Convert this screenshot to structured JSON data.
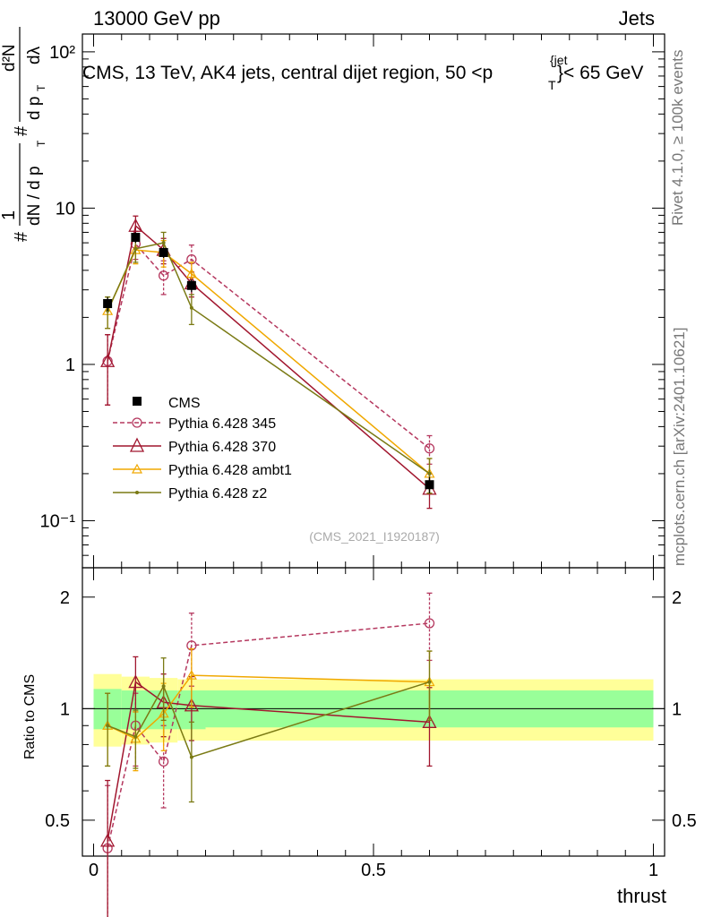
{
  "header": {
    "energy": "13000 GeV pp",
    "category": "Jets",
    "title_main": "CMS, 13 TeV, AK4 jets, central dijet region, 50 <",
    "title_p": "p",
    "title_sup": "{jet",
    "title_sub": "T",
    "title_end": "}< 65 GeV",
    "rivet": "Rivet 4.1.0, ≥ 100k events",
    "mcplots": "mcplots.cern.ch [arXiv:2401.10621]",
    "analysis": "(CMS_2021_I1920187)"
  },
  "ylabel_parts": [
    "#",
    "1",
    "dN / d p",
    "T",
    "#",
    "d p",
    "T",
    "d²N",
    "dλ"
  ],
  "colors": {
    "data": "#000000",
    "p345": "#b5385f",
    "p370": "#a1162e",
    "ambt1": "#f0a800",
    "z2": "#7a7a14",
    "band_inner": "#99ff99",
    "band_outer": "#ffff99"
  },
  "chart_data": [
    {
      "type": "line",
      "yscale": "log",
      "xlim": [
        -0.02,
        1.02
      ],
      "ylim": [
        0.05,
        130
      ],
      "ytick_labels": [
        "10⁻¹",
        "1",
        "10",
        "10²"
      ],
      "xlabel": "thrust",
      "bins": [
        [
          0.0,
          0.05
        ],
        [
          0.05,
          0.1
        ],
        [
          0.1,
          0.15
        ],
        [
          0.15,
          0.2
        ],
        [
          0.2,
          1.0
        ]
      ],
      "series": [
        {
          "name": "CMS",
          "x": [
            0.025,
            0.075,
            0.125,
            0.175,
            0.6
          ],
          "y": [
            2.45,
            6.5,
            5.2,
            3.2,
            0.17
          ],
          "err": [
            0.25,
            0.5,
            0.4,
            0.3,
            0.02
          ],
          "style": "data"
        },
        {
          "name": "Pythia 6.428 345",
          "x": [
            0.025,
            0.075,
            0.125,
            0.175,
            0.6
          ],
          "y": [
            1.05,
            5.9,
            3.7,
            4.7,
            0.29
          ],
          "err": [
            0.5,
            1.2,
            0.9,
            1.1,
            0.06
          ],
          "style": "p345"
        },
        {
          "name": "Pythia 6.428 370",
          "x": [
            0.025,
            0.075,
            0.125,
            0.175,
            0.6
          ],
          "y": [
            1.05,
            7.7,
            5.4,
            3.3,
            0.16
          ],
          "err": [
            0.5,
            1.2,
            1.0,
            0.6,
            0.04
          ],
          "style": "p370"
        },
        {
          "name": "Pythia 6.428 ambt1",
          "x": [
            0.025,
            0.075,
            0.125,
            0.175,
            0.6
          ],
          "y": [
            2.2,
            5.4,
            5.2,
            3.8,
            0.2
          ],
          "err": [
            0.5,
            1.0,
            1.0,
            0.7,
            0.05
          ],
          "style": "ambt1"
        },
        {
          "name": "Pythia 6.428 z2",
          "x": [
            0.025,
            0.075,
            0.125,
            0.175,
            0.6
          ],
          "y": [
            2.2,
            5.5,
            6.0,
            2.3,
            0.2
          ],
          "err": [
            0.5,
            1.0,
            1.0,
            0.5,
            0.05
          ],
          "style": "z2"
        }
      ]
    },
    {
      "type": "line",
      "yscale": "log",
      "xlim": [
        -0.02,
        1.02
      ],
      "ylim": [
        0.4,
        2.4
      ],
      "ylabel": "Ratio to CMS",
      "xlabel": "thrust",
      "xticks": [
        0,
        0.5,
        1
      ],
      "xtick_labels": [
        "0",
        "0.5",
        "1"
      ],
      "yticks": [
        0.5,
        1,
        2
      ],
      "ytick_labels": [
        "0.5",
        "1",
        "2"
      ],
      "band_bins": [
        [
          0.0,
          0.05
        ],
        [
          0.05,
          0.1
        ],
        [
          0.1,
          0.15
        ],
        [
          0.15,
          0.2
        ],
        [
          0.2,
          1.0
        ]
      ],
      "band_inner": [
        [
          0.88,
          1.13
        ],
        [
          0.88,
          1.12
        ],
        [
          0.88,
          1.12
        ],
        [
          0.88,
          1.12
        ],
        [
          0.89,
          1.12
        ]
      ],
      "band_outer": [
        [
          0.79,
          1.24
        ],
        [
          0.8,
          1.22
        ],
        [
          0.81,
          1.21
        ],
        [
          0.82,
          1.2
        ],
        [
          0.82,
          1.2
        ]
      ],
      "series": [
        {
          "name": "Pythia 6.428 345",
          "x": [
            0.025,
            0.075,
            0.125,
            0.175,
            0.6
          ],
          "y": [
            0.42,
            0.9,
            0.72,
            1.48,
            1.7
          ],
          "err": [
            0.2,
            0.2,
            0.18,
            0.33,
            0.35
          ],
          "style": "p345"
        },
        {
          "name": "Pythia 6.428 370",
          "x": [
            0.025,
            0.075,
            0.125,
            0.175,
            0.6
          ],
          "y": [
            0.44,
            1.18,
            1.04,
            1.02,
            0.92
          ],
          "err": [
            0.2,
            0.2,
            0.2,
            0.2,
            0.22
          ],
          "style": "p370"
        },
        {
          "name": "Pythia 6.428 ambt1",
          "x": [
            0.025,
            0.075,
            0.125,
            0.175,
            0.6
          ],
          "y": [
            0.9,
            0.83,
            0.97,
            1.23,
            1.18
          ],
          "err": [
            0.2,
            0.15,
            0.2,
            0.22,
            0.25
          ],
          "style": "ambt1"
        },
        {
          "name": "Pythia 6.428 z2",
          "x": [
            0.025,
            0.075,
            0.125,
            0.175,
            0.6
          ],
          "y": [
            0.9,
            0.84,
            1.15,
            0.74,
            1.18
          ],
          "err": [
            0.2,
            0.15,
            0.22,
            0.18,
            0.25
          ],
          "style": "z2"
        }
      ]
    }
  ]
}
